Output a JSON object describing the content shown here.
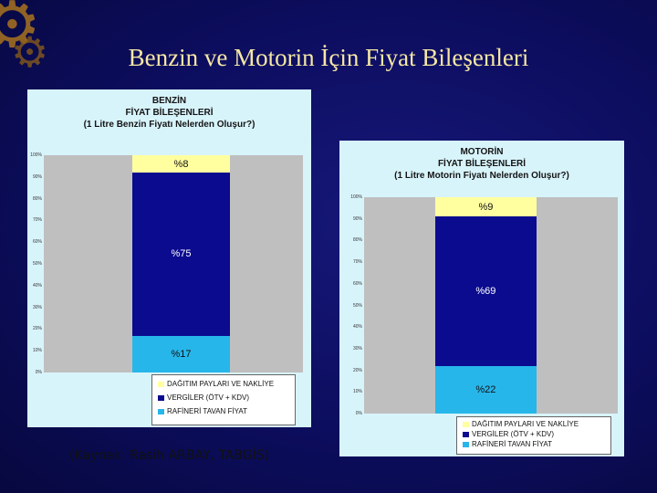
{
  "slide": {
    "title": "Benzin ve Motorin İçin Fiyat Bileşenleri",
    "source": "(Kaynak: Rasih ARBAY, TABGİS)"
  },
  "colors": {
    "dagitim": "#ffffa0",
    "vergiler": "#0b0b8f",
    "rafineri": "#27b6ea"
  },
  "chart_data": [
    {
      "type": "bar",
      "stacked": true,
      "title_lines": [
        "BENZİN",
        "FİYAT BİLEŞENLERİ",
        "(1 Litre Benzin Fiyatı Nelerden Oluşur?)"
      ],
      "categories": [
        ""
      ],
      "ylim": [
        0,
        100
      ],
      "y_ticks": [
        "0%",
        "10%",
        "20%",
        "30%",
        "40%",
        "50%",
        "60%",
        "70%",
        "80%",
        "90%",
        "100%"
      ],
      "series": [
        {
          "name": "RAFİNERİ TAVAN FİYAT",
          "values": [
            17
          ],
          "label": "%17"
        },
        {
          "name": "VERGİLER (ÖTV + KDV)",
          "values": [
            75
          ],
          "label": "%75"
        },
        {
          "name": "DAĞITIM PAYLARI VE NAKLİYE",
          "values": [
            8
          ],
          "label": "%8"
        }
      ],
      "legend": "bottom-right",
      "grid": false
    },
    {
      "type": "bar",
      "stacked": true,
      "title_lines": [
        "MOTORİN",
        "FİYAT BİLEŞENLERİ",
        "(1 Litre Motorin Fiyatı Nelerden Oluşur?)"
      ],
      "categories": [
        ""
      ],
      "ylim": [
        0,
        100
      ],
      "y_ticks": [
        "0%",
        "10%",
        "20%",
        "30%",
        "40%",
        "50%",
        "60%",
        "70%",
        "80%",
        "90%",
        "100%"
      ],
      "series": [
        {
          "name": "RAFİNERİ TAVAN FİYAT",
          "values": [
            22
          ],
          "label": "%22"
        },
        {
          "name": "VERGİLER (ÖTV + KDV)",
          "values": [
            69
          ],
          "label": "%69"
        },
        {
          "name": "DAĞITIM PAYLARI VE NAKLİYE",
          "values": [
            9
          ],
          "label": "%9"
        }
      ],
      "legend": "bottom-right",
      "grid": false
    }
  ]
}
